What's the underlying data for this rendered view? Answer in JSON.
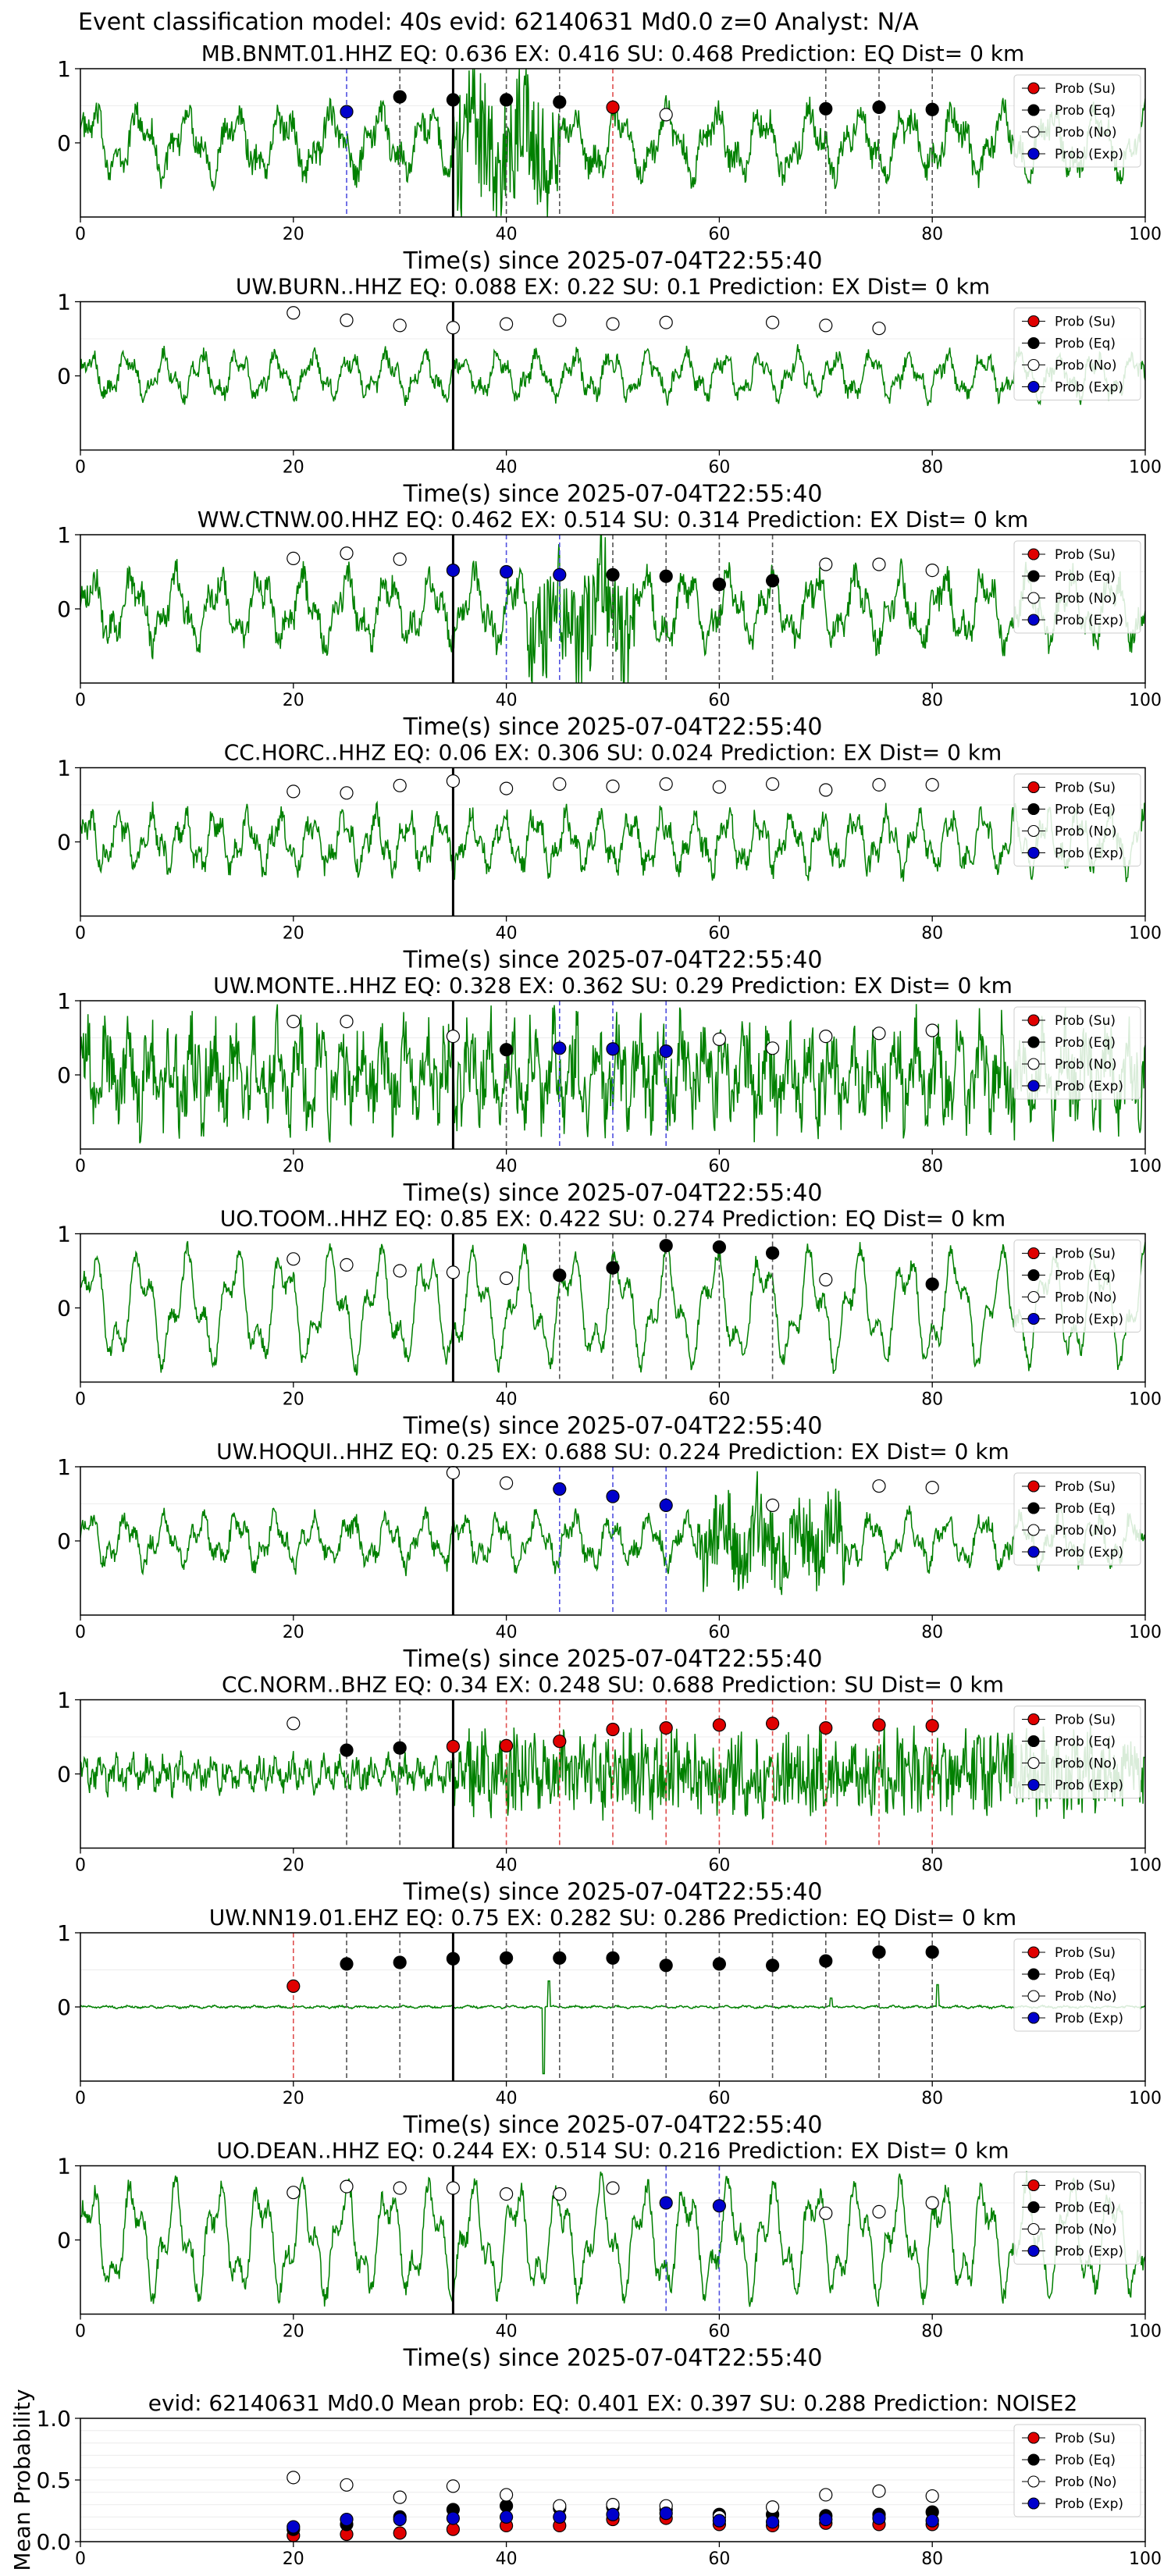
{
  "suptitle": "Event classification model: 40s evid: 62140631 Md0.0 z=0 Analyst: N/A",
  "colors": {
    "waveform": "#008000",
    "eq": "#000000",
    "su": "#e00000",
    "no": "#ffffff",
    "exp": "#0000cc",
    "eq_line": "#555555",
    "su_line": "#e05050",
    "exp_line": "#5050e0",
    "origin_line": "#000000"
  },
  "legend": [
    "Prob (Su)",
    "Prob (Eq)",
    "Prob (No)",
    "Prob (Exp)"
  ],
  "xlabel": "Time(s) since 2025-07-04T22:55:40",
  "chart_data": [
    {
      "type": "line",
      "station": "MB.BNMT.01.HHZ",
      "title": "MB.BNMT.01.HHZ    EQ: 0.636   EX: 0.416   SU: 0.468    Prediction: EQ     Dist= 0 km",
      "xlim": [
        0,
        100
      ],
      "xticks": [
        0,
        20,
        40,
        60,
        80,
        100
      ],
      "ylim": [
        -1,
        1
      ],
      "yticks": [
        0,
        1
      ],
      "origin_time": 35,
      "legend_position": "top-right",
      "waveform": {
        "amp": 0.32,
        "period": 4.5,
        "burst_start": 35,
        "burst_end": 45,
        "burst_amp": 0.8,
        "noise": 0.18
      },
      "points": [
        {
          "x": 25,
          "y": 0.42,
          "cls": "exp"
        },
        {
          "x": 30,
          "y": 0.62,
          "cls": "eq"
        },
        {
          "x": 35,
          "y": 0.58,
          "cls": "eq"
        },
        {
          "x": 40,
          "y": 0.58,
          "cls": "eq"
        },
        {
          "x": 45,
          "y": 0.55,
          "cls": "eq"
        },
        {
          "x": 50,
          "y": 0.48,
          "cls": "su"
        },
        {
          "x": 55,
          "y": 0.38,
          "cls": "no"
        },
        {
          "x": 70,
          "y": 0.46,
          "cls": "eq"
        },
        {
          "x": 75,
          "y": 0.48,
          "cls": "eq"
        },
        {
          "x": 80,
          "y": 0.45,
          "cls": "eq"
        }
      ]
    },
    {
      "type": "line",
      "station": "UW.BURN..HHZ",
      "title": "UW.BURN..HHZ    EQ: 0.088   EX: 0.22   SU: 0.1    Prediction: EX     Dist= 0 km",
      "xlim": [
        0,
        100
      ],
      "xticks": [
        0,
        20,
        40,
        60,
        80,
        100
      ],
      "ylim": [
        -1,
        1
      ],
      "yticks": [
        0,
        1
      ],
      "origin_time": 35,
      "legend_position": "top-right",
      "waveform": {
        "amp": 0.22,
        "period": 3.5,
        "burst_start": 0,
        "burst_end": 0,
        "burst_amp": 0,
        "noise": 0.1
      },
      "points": [
        {
          "x": 20,
          "y": 0.85,
          "cls": "no"
        },
        {
          "x": 25,
          "y": 0.75,
          "cls": "no"
        },
        {
          "x": 30,
          "y": 0.68,
          "cls": "no"
        },
        {
          "x": 35,
          "y": 0.65,
          "cls": "no"
        },
        {
          "x": 40,
          "y": 0.7,
          "cls": "no"
        },
        {
          "x": 45,
          "y": 0.75,
          "cls": "no"
        },
        {
          "x": 50,
          "y": 0.7,
          "cls": "no"
        },
        {
          "x": 55,
          "y": 0.72,
          "cls": "no"
        },
        {
          "x": 65,
          "y": 0.72,
          "cls": "no"
        },
        {
          "x": 70,
          "y": 0.68,
          "cls": "no"
        },
        {
          "x": 75,
          "y": 0.64,
          "cls": "no"
        }
      ]
    },
    {
      "type": "line",
      "station": "WW.CTNW.00.HHZ",
      "title": "WW.CTNW.00.HHZ    EQ: 0.462   EX: 0.514   SU: 0.314    Prediction: EX     Dist= 0 km",
      "xlim": [
        0,
        100
      ],
      "xticks": [
        0,
        20,
        40,
        60,
        80,
        100
      ],
      "ylim": [
        -1,
        1
      ],
      "yticks": [
        0,
        1
      ],
      "origin_time": 35,
      "legend_position": "top-right",
      "waveform": {
        "amp": 0.35,
        "period": 4.0,
        "burst_start": 42,
        "burst_end": 52,
        "burst_amp": 0.75,
        "noise": 0.18
      },
      "points": [
        {
          "x": 20,
          "y": 0.68,
          "cls": "no"
        },
        {
          "x": 25,
          "y": 0.75,
          "cls": "no"
        },
        {
          "x": 30,
          "y": 0.67,
          "cls": "no"
        },
        {
          "x": 35,
          "y": 0.52,
          "cls": "exp"
        },
        {
          "x": 40,
          "y": 0.5,
          "cls": "exp"
        },
        {
          "x": 45,
          "y": 0.46,
          "cls": "exp"
        },
        {
          "x": 50,
          "y": 0.46,
          "cls": "eq"
        },
        {
          "x": 55,
          "y": 0.44,
          "cls": "eq"
        },
        {
          "x": 60,
          "y": 0.33,
          "cls": "eq"
        },
        {
          "x": 65,
          "y": 0.38,
          "cls": "eq"
        },
        {
          "x": 70,
          "y": 0.6,
          "cls": "no"
        },
        {
          "x": 75,
          "y": 0.6,
          "cls": "no"
        },
        {
          "x": 80,
          "y": 0.52,
          "cls": "no"
        }
      ]
    },
    {
      "type": "line",
      "station": "CC.HORC..HHZ",
      "title": "CC.HORC..HHZ    EQ: 0.06   EX: 0.306   SU: 0.024    Prediction: EX     Dist= 0 km",
      "xlim": [
        0,
        100
      ],
      "xticks": [
        0,
        20,
        40,
        60,
        80,
        100
      ],
      "ylim": [
        -1,
        1
      ],
      "yticks": [
        0,
        1
      ],
      "origin_time": 35,
      "legend_position": "top-right",
      "waveform": {
        "amp": 0.28,
        "period": 3.0,
        "burst_start": 0,
        "burst_end": 0,
        "burst_amp": 0,
        "noise": 0.14
      },
      "points": [
        {
          "x": 20,
          "y": 0.68,
          "cls": "no"
        },
        {
          "x": 25,
          "y": 0.66,
          "cls": "no"
        },
        {
          "x": 30,
          "y": 0.76,
          "cls": "no"
        },
        {
          "x": 35,
          "y": 0.82,
          "cls": "no"
        },
        {
          "x": 40,
          "y": 0.72,
          "cls": "no"
        },
        {
          "x": 45,
          "y": 0.78,
          "cls": "no"
        },
        {
          "x": 50,
          "y": 0.75,
          "cls": "no"
        },
        {
          "x": 55,
          "y": 0.78,
          "cls": "no"
        },
        {
          "x": 60,
          "y": 0.74,
          "cls": "no"
        },
        {
          "x": 65,
          "y": 0.78,
          "cls": "no"
        },
        {
          "x": 70,
          "y": 0.7,
          "cls": "no"
        },
        {
          "x": 75,
          "y": 0.77,
          "cls": "no"
        },
        {
          "x": 80,
          "y": 0.77,
          "cls": "no"
        }
      ]
    },
    {
      "type": "line",
      "station": "UW.MONTE..HHZ",
      "title": "UW.MONTE..HHZ    EQ: 0.328   EX: 0.362   SU: 0.29    Prediction: EX     Dist= 0 km",
      "xlim": [
        0,
        100
      ],
      "xticks": [
        0,
        20,
        40,
        60,
        80,
        100
      ],
      "ylim": [
        -1,
        1
      ],
      "yticks": [
        0,
        1
      ],
      "origin_time": 35,
      "legend_position": "top-right",
      "waveform": {
        "amp": 0.35,
        "period": 2.0,
        "burst_start": 0,
        "burst_end": 0,
        "burst_amp": 0,
        "noise": 0.45
      },
      "points": [
        {
          "x": 20,
          "y": 0.72,
          "cls": "no"
        },
        {
          "x": 25,
          "y": 0.72,
          "cls": "no"
        },
        {
          "x": 35,
          "y": 0.52,
          "cls": "no"
        },
        {
          "x": 40,
          "y": 0.34,
          "cls": "eq"
        },
        {
          "x": 45,
          "y": 0.36,
          "cls": "exp"
        },
        {
          "x": 50,
          "y": 0.35,
          "cls": "exp"
        },
        {
          "x": 55,
          "y": 0.32,
          "cls": "exp"
        },
        {
          "x": 60,
          "y": 0.48,
          "cls": "no"
        },
        {
          "x": 65,
          "y": 0.36,
          "cls": "no"
        },
        {
          "x": 70,
          "y": 0.52,
          "cls": "no"
        },
        {
          "x": 75,
          "y": 0.56,
          "cls": "no"
        },
        {
          "x": 80,
          "y": 0.6,
          "cls": "no"
        }
      ]
    },
    {
      "type": "line",
      "station": "UO.TOOM..HHZ",
      "title": "UO.TOOM..HHZ    EQ: 0.85   EX: 0.422   SU: 0.274    Prediction: EQ     Dist= 0 km",
      "xlim": [
        0,
        100
      ],
      "xticks": [
        0,
        20,
        40,
        60,
        80,
        100
      ],
      "ylim": [
        -1,
        1
      ],
      "yticks": [
        0,
        1
      ],
      "origin_time": 35,
      "legend_position": "top-right",
      "waveform": {
        "amp": 0.55,
        "period": 4.5,
        "burst_start": 0,
        "burst_end": 0,
        "burst_amp": 0,
        "noise": 0.1
      },
      "points": [
        {
          "x": 20,
          "y": 0.66,
          "cls": "no"
        },
        {
          "x": 25,
          "y": 0.58,
          "cls": "no"
        },
        {
          "x": 30,
          "y": 0.5,
          "cls": "no"
        },
        {
          "x": 35,
          "y": 0.48,
          "cls": "no"
        },
        {
          "x": 40,
          "y": 0.4,
          "cls": "no"
        },
        {
          "x": 45,
          "y": 0.44,
          "cls": "eq"
        },
        {
          "x": 50,
          "y": 0.54,
          "cls": "eq"
        },
        {
          "x": 55,
          "y": 0.84,
          "cls": "eq"
        },
        {
          "x": 60,
          "y": 0.82,
          "cls": "eq"
        },
        {
          "x": 65,
          "y": 0.74,
          "cls": "eq"
        },
        {
          "x": 70,
          "y": 0.38,
          "cls": "no"
        },
        {
          "x": 80,
          "y": 0.32,
          "cls": "eq"
        }
      ]
    },
    {
      "type": "line",
      "station": "UW.HOQUI..HHZ",
      "title": "UW.HOQUI..HHZ    EQ: 0.25   EX: 0.688   SU: 0.224    Prediction: EX     Dist= 0 km",
      "xlim": [
        0,
        100
      ],
      "xticks": [
        0,
        20,
        40,
        60,
        80,
        100
      ],
      "ylim": [
        -1,
        1
      ],
      "yticks": [
        0,
        1
      ],
      "origin_time": 35,
      "legend_position": "top-right",
      "waveform": {
        "amp": 0.25,
        "period": 3.5,
        "burst_start": 58,
        "burst_end": 72,
        "burst_amp": 0.55,
        "noise": 0.12
      },
      "points": [
        {
          "x": 35,
          "y": 0.92,
          "cls": "no"
        },
        {
          "x": 40,
          "y": 0.78,
          "cls": "no"
        },
        {
          "x": 45,
          "y": 0.7,
          "cls": "exp"
        },
        {
          "x": 50,
          "y": 0.6,
          "cls": "exp"
        },
        {
          "x": 55,
          "y": 0.48,
          "cls": "exp"
        },
        {
          "x": 65,
          "y": 0.48,
          "cls": "no"
        },
        {
          "x": 75,
          "y": 0.74,
          "cls": "no"
        },
        {
          "x": 80,
          "y": 0.72,
          "cls": "no"
        }
      ]
    },
    {
      "type": "line",
      "station": "CC.NORM..BHZ",
      "title": "CC.NORM..BHZ    EQ: 0.34   EX: 0.248   SU: 0.688    Prediction: SU     Dist= 0 km",
      "xlim": [
        0,
        100
      ],
      "xticks": [
        0,
        20,
        40,
        60,
        80,
        100
      ],
      "ylim": [
        -1,
        1
      ],
      "yticks": [
        0,
        1
      ],
      "origin_time": 35,
      "legend_position": "top-right",
      "waveform": {
        "amp": 0.12,
        "period": 1.5,
        "burst_start": 35,
        "burst_end": 100,
        "burst_amp": 0.45,
        "noise": 0.15
      },
      "points": [
        {
          "x": 20,
          "y": 0.68,
          "cls": "no"
        },
        {
          "x": 25,
          "y": 0.32,
          "cls": "eq"
        },
        {
          "x": 30,
          "y": 0.35,
          "cls": "eq"
        },
        {
          "x": 35,
          "y": 0.37,
          "cls": "su"
        },
        {
          "x": 40,
          "y": 0.38,
          "cls": "su"
        },
        {
          "x": 45,
          "y": 0.44,
          "cls": "su"
        },
        {
          "x": 50,
          "y": 0.6,
          "cls": "su"
        },
        {
          "x": 55,
          "y": 0.62,
          "cls": "su"
        },
        {
          "x": 60,
          "y": 0.66,
          "cls": "su"
        },
        {
          "x": 65,
          "y": 0.68,
          "cls": "su"
        },
        {
          "x": 70,
          "y": 0.62,
          "cls": "su"
        },
        {
          "x": 75,
          "y": 0.66,
          "cls": "su"
        },
        {
          "x": 80,
          "y": 0.65,
          "cls": "su"
        }
      ]
    },
    {
      "type": "line",
      "station": "UW.NN19.01.EHZ",
      "title": "UW.NN19.01.EHZ    EQ: 0.75   EX: 0.282   SU: 0.286    Prediction: EQ     Dist= 0 km",
      "xlim": [
        0,
        100
      ],
      "xticks": [
        0,
        20,
        40,
        60,
        80,
        100
      ],
      "ylim": [
        -1,
        1
      ],
      "yticks": [
        0,
        1
      ],
      "origin_time": 35,
      "legend_position": "top-right",
      "waveform": {
        "amp": 0.01,
        "period": 2.0,
        "burst_start": 0,
        "burst_end": 0,
        "burst_amp": 0,
        "noise": 0.01,
        "spikes": [
          [
            43.5,
            -0.9
          ],
          [
            44,
            0.35
          ],
          [
            70.5,
            0.12
          ],
          [
            80.5,
            0.3
          ]
        ]
      },
      "points": [
        {
          "x": 20,
          "y": 0.28,
          "cls": "su"
        },
        {
          "x": 25,
          "y": 0.58,
          "cls": "eq"
        },
        {
          "x": 30,
          "y": 0.6,
          "cls": "eq"
        },
        {
          "x": 35,
          "y": 0.65,
          "cls": "eq"
        },
        {
          "x": 40,
          "y": 0.66,
          "cls": "eq"
        },
        {
          "x": 45,
          "y": 0.66,
          "cls": "eq"
        },
        {
          "x": 50,
          "y": 0.66,
          "cls": "eq"
        },
        {
          "x": 55,
          "y": 0.56,
          "cls": "eq"
        },
        {
          "x": 60,
          "y": 0.58,
          "cls": "eq"
        },
        {
          "x": 65,
          "y": 0.56,
          "cls": "eq"
        },
        {
          "x": 70,
          "y": 0.62,
          "cls": "eq"
        },
        {
          "x": 75,
          "y": 0.74,
          "cls": "eq"
        },
        {
          "x": 80,
          "y": 0.74,
          "cls": "eq"
        }
      ]
    },
    {
      "type": "line",
      "station": "UO.DEAN..HHZ",
      "title": "UO.DEAN..HHZ    EQ: 0.244   EX: 0.514   SU: 0.216    Prediction: EX     Dist= 0 km",
      "xlim": [
        0,
        100
      ],
      "xticks": [
        0,
        20,
        40,
        60,
        80,
        100
      ],
      "ylim": [
        -1,
        1
      ],
      "yticks": [
        0,
        1
      ],
      "origin_time": 35,
      "legend_position": "top-right",
      "waveform": {
        "amp": 0.55,
        "period": 4.0,
        "burst_start": 0,
        "burst_end": 0,
        "burst_amp": 0,
        "noise": 0.12
      },
      "points": [
        {
          "x": 20,
          "y": 0.64,
          "cls": "no"
        },
        {
          "x": 25,
          "y": 0.72,
          "cls": "no"
        },
        {
          "x": 30,
          "y": 0.7,
          "cls": "no"
        },
        {
          "x": 35,
          "y": 0.7,
          "cls": "no"
        },
        {
          "x": 40,
          "y": 0.62,
          "cls": "no"
        },
        {
          "x": 45,
          "y": 0.62,
          "cls": "no"
        },
        {
          "x": 50,
          "y": 0.7,
          "cls": "no"
        },
        {
          "x": 55,
          "y": 0.5,
          "cls": "exp"
        },
        {
          "x": 60,
          "y": 0.46,
          "cls": "exp"
        },
        {
          "x": 70,
          "y": 0.36,
          "cls": "no"
        },
        {
          "x": 75,
          "y": 0.38,
          "cls": "no"
        },
        {
          "x": 80,
          "y": 0.5,
          "cls": "no"
        }
      ]
    },
    {
      "type": "scatter",
      "station": "mean",
      "title": "evid: 62140631  Md0.0  Mean prob:    EQ: 0.401  EX: 0.397  SU: 0.288   Prediction: NOISE2",
      "ylabel": "Mean Probability",
      "xlim": [
        0,
        100
      ],
      "xticks": [
        0,
        20,
        40,
        60,
        80,
        100
      ],
      "ylim": [
        0,
        1
      ],
      "yticks": [
        0.0,
        0.5,
        1.0
      ],
      "yticklabels": [
        "0.0",
        "0.5",
        "1.0"
      ],
      "legend_position": "top-right",
      "series": [
        {
          "cls": "su",
          "x": [
            20,
            25,
            30,
            35,
            40,
            45,
            50,
            55,
            60,
            65,
            70,
            75,
            80
          ],
          "values": [
            0.05,
            0.06,
            0.07,
            0.1,
            0.13,
            0.13,
            0.18,
            0.19,
            0.14,
            0.13,
            0.15,
            0.14,
            0.14
          ]
        },
        {
          "cls": "eq",
          "x": [
            20,
            25,
            30,
            35,
            40,
            45,
            50,
            55,
            60,
            65,
            70,
            75,
            80
          ],
          "values": [
            0.1,
            0.14,
            0.2,
            0.26,
            0.29,
            0.27,
            0.28,
            0.26,
            0.22,
            0.22,
            0.21,
            0.22,
            0.24
          ]
        },
        {
          "cls": "no",
          "x": [
            20,
            25,
            30,
            35,
            40,
            45,
            50,
            55,
            60,
            65,
            70,
            75,
            80
          ],
          "values": [
            0.52,
            0.46,
            0.36,
            0.45,
            0.38,
            0.29,
            0.3,
            0.29,
            0.2,
            0.28,
            0.38,
            0.41,
            0.37
          ]
        },
        {
          "cls": "exp",
          "x": [
            20,
            25,
            30,
            35,
            40,
            45,
            50,
            55,
            60,
            65,
            70,
            75,
            80
          ],
          "values": [
            0.12,
            0.18,
            0.18,
            0.19,
            0.2,
            0.2,
            0.22,
            0.23,
            0.17,
            0.16,
            0.18,
            0.19,
            0.17
          ]
        }
      ]
    }
  ]
}
